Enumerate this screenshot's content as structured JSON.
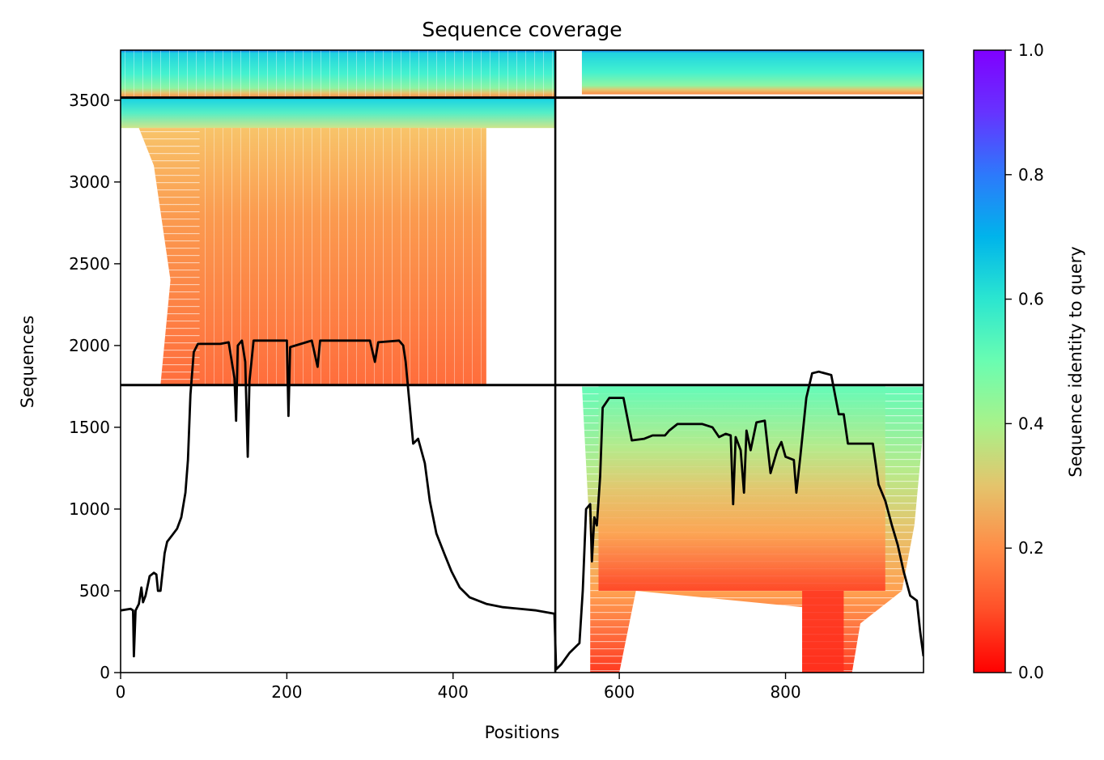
{
  "chart_data": {
    "type": "heatmap",
    "title": "Sequence coverage",
    "xlabel": "Positions",
    "ylabel": "Sequences",
    "xlim": [
      0,
      966
    ],
    "ylim": [
      0,
      3806
    ],
    "x_ticks": [
      0,
      200,
      400,
      600,
      800
    ],
    "y_ticks": [
      0,
      500,
      1000,
      1500,
      2000,
      2500,
      3000,
      3500
    ],
    "colorbar": {
      "label": "Sequence identity to query",
      "range": [
        0,
        1
      ],
      "ticks": [
        0.0,
        0.2,
        0.4,
        0.6,
        0.8,
        1.0
      ],
      "tick_labels": [
        "0.0",
        "0.2",
        "0.4",
        "0.6",
        "0.8",
        "1.0"
      ],
      "colormap": "rainbow_r"
    },
    "chain_boundary_x": 523,
    "group_boundaries_y": [
      1758,
      3516
    ],
    "coverage_line": [
      [
        0,
        380
      ],
      [
        12,
        390
      ],
      [
        15,
        380
      ],
      [
        16,
        100
      ],
      [
        18,
        380
      ],
      [
        22,
        420
      ],
      [
        25,
        520
      ],
      [
        27,
        430
      ],
      [
        30,
        470
      ],
      [
        35,
        590
      ],
      [
        40,
        610
      ],
      [
        43,
        600
      ],
      [
        45,
        500
      ],
      [
        48,
        500
      ],
      [
        53,
        730
      ],
      [
        56,
        800
      ],
      [
        62,
        840
      ],
      [
        68,
        880
      ],
      [
        73,
        950
      ],
      [
        78,
        1100
      ],
      [
        81,
        1300
      ],
      [
        84,
        1700
      ],
      [
        88,
        1960
      ],
      [
        93,
        2010
      ],
      [
        120,
        2010
      ],
      [
        130,
        2020
      ],
      [
        137,
        1800
      ],
      [
        139,
        1540
      ],
      [
        141,
        2000
      ],
      [
        146,
        2030
      ],
      [
        150,
        1900
      ],
      [
        153,
        1320
      ],
      [
        155,
        1780
      ],
      [
        160,
        2030
      ],
      [
        200,
        2030
      ],
      [
        202,
        1570
      ],
      [
        204,
        1990
      ],
      [
        230,
        2030
      ],
      [
        237,
        1870
      ],
      [
        240,
        2030
      ],
      [
        300,
        2030
      ],
      [
        306,
        1900
      ],
      [
        310,
        2020
      ],
      [
        335,
        2030
      ],
      [
        340,
        2000
      ],
      [
        343,
        1900
      ],
      [
        347,
        1680
      ],
      [
        352,
        1400
      ],
      [
        358,
        1430
      ],
      [
        366,
        1280
      ],
      [
        372,
        1050
      ],
      [
        380,
        850
      ],
      [
        390,
        720
      ],
      [
        398,
        620
      ],
      [
        408,
        520
      ],
      [
        420,
        460
      ],
      [
        440,
        420
      ],
      [
        460,
        400
      ],
      [
        500,
        380
      ],
      [
        522,
        360
      ],
      [
        524,
        20
      ],
      [
        530,
        50
      ],
      [
        540,
        120
      ],
      [
        552,
        180
      ],
      [
        556,
        500
      ],
      [
        560,
        1000
      ],
      [
        565,
        1030
      ],
      [
        567,
        680
      ],
      [
        570,
        950
      ],
      [
        573,
        900
      ],
      [
        577,
        1200
      ],
      [
        580,
        1620
      ],
      [
        588,
        1680
      ],
      [
        605,
        1680
      ],
      [
        615,
        1420
      ],
      [
        630,
        1430
      ],
      [
        640,
        1450
      ],
      [
        655,
        1450
      ],
      [
        660,
        1480
      ],
      [
        670,
        1520
      ],
      [
        700,
        1520
      ],
      [
        712,
        1500
      ],
      [
        720,
        1440
      ],
      [
        728,
        1460
      ],
      [
        734,
        1450
      ],
      [
        737,
        1030
      ],
      [
        740,
        1440
      ],
      [
        746,
        1360
      ],
      [
        750,
        1100
      ],
      [
        753,
        1480
      ],
      [
        758,
        1360
      ],
      [
        765,
        1530
      ],
      [
        775,
        1540
      ],
      [
        782,
        1220
      ],
      [
        790,
        1360
      ],
      [
        795,
        1410
      ],
      [
        800,
        1320
      ],
      [
        810,
        1300
      ],
      [
        813,
        1100
      ],
      [
        818,
        1330
      ],
      [
        825,
        1680
      ],
      [
        832,
        1830
      ],
      [
        840,
        1840
      ],
      [
        855,
        1820
      ],
      [
        864,
        1580
      ],
      [
        870,
        1580
      ],
      [
        875,
        1400
      ],
      [
        905,
        1400
      ],
      [
        912,
        1150
      ],
      [
        920,
        1050
      ],
      [
        928,
        900
      ],
      [
        935,
        780
      ],
      [
        942,
        620
      ],
      [
        950,
        470
      ],
      [
        958,
        440
      ],
      [
        962,
        250
      ],
      [
        966,
        100
      ]
    ]
  }
}
